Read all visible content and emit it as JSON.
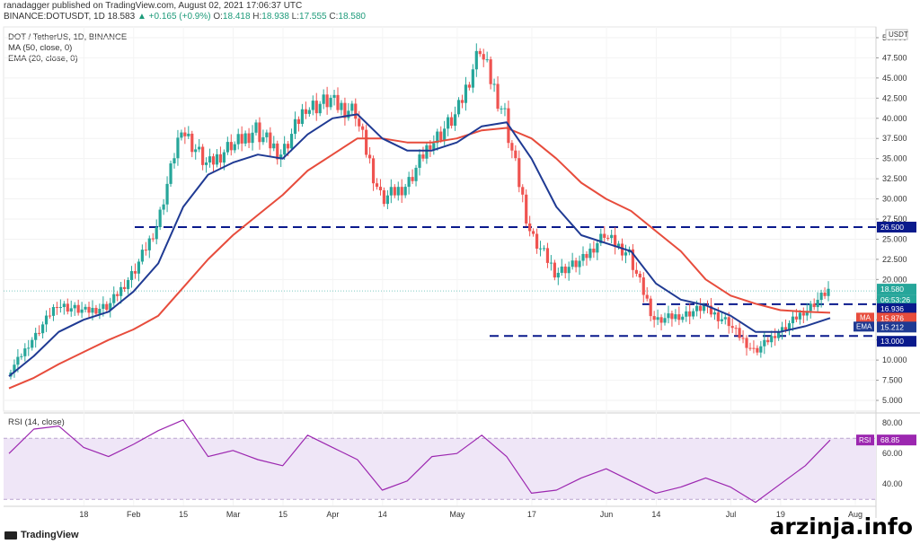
{
  "header": {
    "publish_line": "ranadagger published on TradingView.com, August 02, 2021 17:06:37 UTC",
    "symbol_line": "BINANCE:DOTUSDT, 1D",
    "close_now": "18.583",
    "change": "+0.165 (+0.9%)",
    "o_label": "O:",
    "o_val": "18.418",
    "h_label": "H:",
    "h_val": "18.938",
    "l_label": "L:",
    "l_val": "17.555",
    "c_label": "C:",
    "c_val": "18.580"
  },
  "legend": {
    "pair": "DOT / TetherUS, 1D, BINANCE",
    "ma": "MA (50, close, 0)",
    "ema": "EMA (20, close, 0)",
    "rsi": "RSI (14, close)"
  },
  "price_axis": {
    "currency": "USDT",
    "ticks": [
      "50.000",
      "47.500",
      "45.000",
      "42.500",
      "40.000",
      "37.500",
      "35.000",
      "32.500",
      "30.000",
      "27.500",
      "25.000",
      "22.500",
      "20.000",
      "17.500",
      "15.000",
      "12.500",
      "10.000",
      "7.500",
      "5.000"
    ],
    "tick_values": [
      50,
      47.5,
      45,
      42.5,
      40,
      37.5,
      35,
      32.5,
      30,
      27.5,
      25,
      22.5,
      20,
      17.5,
      15,
      12.5,
      10,
      7.5,
      5
    ]
  },
  "rsi_axis": {
    "ticks": [
      "80.00",
      "60.00",
      "40.00"
    ],
    "tick_values": [
      80,
      60,
      40
    ]
  },
  "labels": {
    "level_high": "26.500",
    "last_price": "18.580",
    "countdown": "06:53:26",
    "level_mid": "16.936",
    "ma_tag": "MA",
    "ma_value": "15.876",
    "ema_tag": "EMA",
    "ema_value": "15.212",
    "level_low": "13.000",
    "rsi_tag": "RSI",
    "rsi_value": "68.85"
  },
  "time_axis": [
    "18",
    "Feb",
    "15",
    "Mar",
    "15",
    "Apr",
    "14",
    "May",
    "17",
    "Jun",
    "14",
    "Jul",
    "19",
    "Aug"
  ],
  "footer": {
    "brand": "TradingView",
    "watermark": "arzinja.info"
  },
  "colors": {
    "up": "#26a69a",
    "down": "#ef5350",
    "ma": "#e74c3c",
    "ema": "#1f3a93",
    "levels": "#0a1a8c",
    "rsi": "#9c27b0",
    "rsi_band": "#efe6f7"
  },
  "chart_data": [
    {
      "type": "line",
      "title": "DOT / TetherUS, 1D, BINANCE",
      "x": [
        "Jan 2",
        "Jan 9",
        "Jan 18",
        "Jan 25",
        "Feb 1",
        "Feb 8",
        "Feb 15",
        "Feb 20",
        "Mar 1",
        "Mar 8",
        "Mar 15",
        "Mar 22",
        "Apr 1",
        "Apr 8",
        "Apr 14",
        "Apr 20",
        "Apr 25",
        "May 1",
        "May 8",
        "May 14",
        "May 17",
        "May 20",
        "May 24",
        "Jun 1",
        "Jun 7",
        "Jun 14",
        "Jun 21",
        "Jun 28",
        "Jul 5",
        "Jul 12",
        "Jul 19",
        "Jul 22",
        "Jul 26",
        "Aug 2"
      ],
      "series": [
        {
          "name": "close",
          "values": [
            8.2,
            12.5,
            17.0,
            16.0,
            16.5,
            20.5,
            26.5,
            39.0,
            34.0,
            36.5,
            38.5,
            35.5,
            41.5,
            42.0,
            40.5,
            30.0,
            31.5,
            37.0,
            40.0,
            48.5,
            40.0,
            26.0,
            21.0,
            22.0,
            25.5,
            23.0,
            15.0,
            15.5,
            16.5,
            14.5,
            11.0,
            13.5,
            16.0,
            18.58
          ]
        },
        {
          "name": "MA (50, close, 0)",
          "values": [
            6.5,
            7.8,
            9.5,
            11.0,
            12.5,
            13.8,
            15.5,
            19.0,
            22.5,
            25.5,
            28.0,
            30.5,
            33.5,
            35.5,
            37.5,
            37.5,
            37.0,
            37.0,
            37.5,
            38.5,
            38.8,
            37.5,
            35.0,
            32.0,
            30.0,
            28.5,
            26.0,
            23.5,
            20.0,
            18.0,
            17.0,
            16.2,
            16.0,
            15.876
          ]
        },
        {
          "name": "EMA (20, close, 0)",
          "values": [
            8.0,
            10.5,
            13.5,
            15.0,
            16.0,
            18.5,
            22.0,
            29.0,
            33.0,
            34.5,
            35.5,
            35.0,
            38.0,
            40.0,
            40.5,
            37.5,
            36.0,
            36.0,
            37.0,
            39.0,
            39.5,
            35.0,
            29.0,
            25.5,
            24.5,
            23.5,
            19.5,
            17.5,
            16.8,
            15.5,
            13.5,
            13.5,
            14.2,
            15.212
          ]
        }
      ],
      "levels": [
        26.5,
        16.936,
        13.0
      ],
      "ylim": [
        4,
        51
      ],
      "scale": "linear",
      "last_close": 18.58
    },
    {
      "type": "line",
      "title": "RSI (14, close)",
      "x": [
        "Jan 2",
        "Jan 9",
        "Jan 18",
        "Jan 25",
        "Feb 1",
        "Feb 8",
        "Feb 15",
        "Feb 20",
        "Mar 1",
        "Mar 8",
        "Mar 15",
        "Mar 22",
        "Apr 1",
        "Apr 8",
        "Apr 14",
        "Apr 20",
        "Apr 25",
        "May 1",
        "May 8",
        "May 14",
        "May 17",
        "May 20",
        "May 24",
        "Jun 1",
        "Jun 7",
        "Jun 14",
        "Jun 21",
        "Jun 28",
        "Jul 5",
        "Jul 12",
        "Jul 19",
        "Jul 22",
        "Jul 26",
        "Aug 2"
      ],
      "series": [
        {
          "name": "RSI",
          "values": [
            60,
            76,
            78,
            64,
            58,
            66,
            75,
            82,
            58,
            62,
            56,
            52,
            72,
            64,
            56,
            36,
            42,
            58,
            60,
            72,
            58,
            34,
            36,
            44,
            50,
            42,
            34,
            38,
            44,
            38,
            28,
            40,
            52,
            68.85
          ]
        }
      ],
      "band": [
        30,
        70
      ],
      "ylim": [
        26,
        86
      ]
    }
  ]
}
